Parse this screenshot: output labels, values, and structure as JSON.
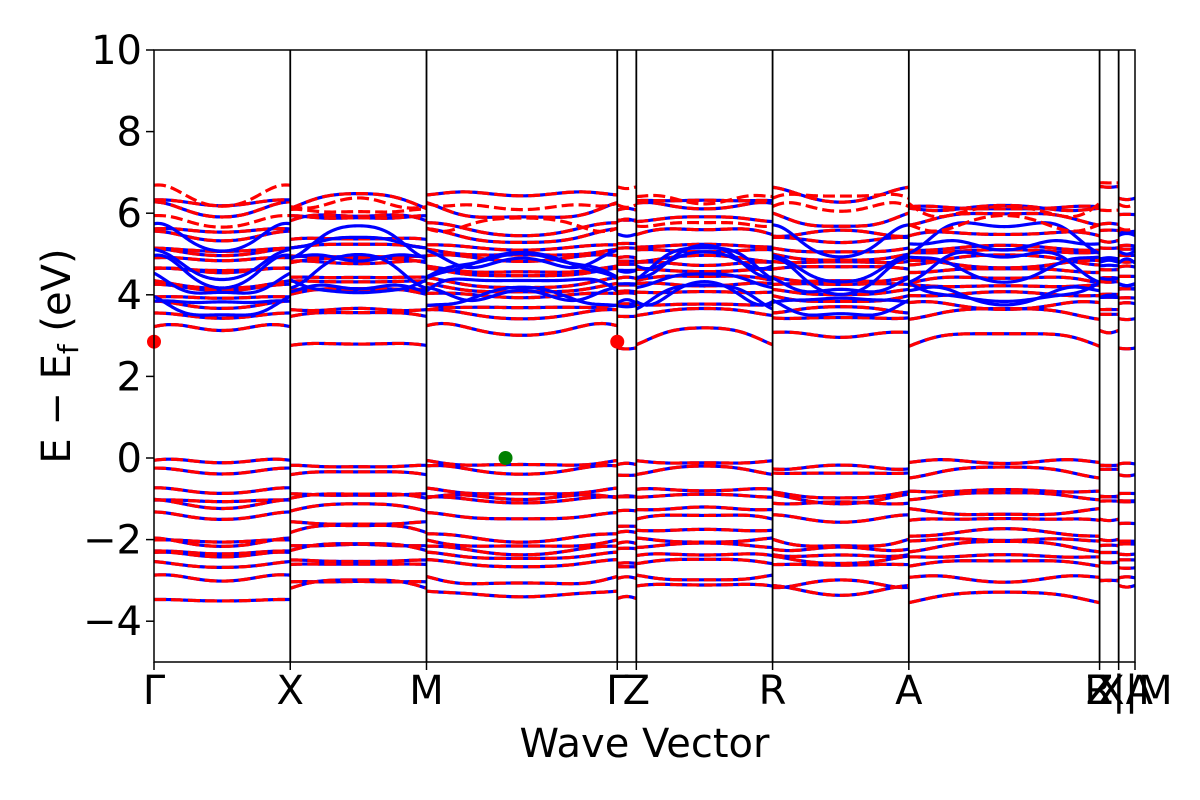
{
  "chart_data": {
    "type": "line",
    "title": "",
    "xlabel": "Wave Vector",
    "ylabel_parts": [
      "E − E",
      "f",
      " (eV)"
    ],
    "ylim": [
      -5,
      10
    ],
    "yticks": [
      -4,
      -2,
      0,
      2,
      4,
      6,
      8,
      10
    ],
    "ytick_labels": [
      "−4",
      "−2",
      "0",
      "2",
      "4",
      "6",
      "8",
      "10"
    ],
    "xlim": [
      0,
      7.2
    ],
    "kpoints": [
      {
        "label": "Γ",
        "x": 0.0
      },
      {
        "label": "X",
        "x": 1.0
      },
      {
        "label": "M",
        "x": 2.0
      },
      {
        "label": "Γ",
        "x": 3.4
      },
      {
        "label": "Z",
        "x": 3.54
      },
      {
        "label": "R",
        "x": 4.54
      },
      {
        "label": "A",
        "x": 5.54
      },
      {
        "label": "Z",
        "x": 6.94
      },
      {
        "label": "R|A",
        "x": 7.08
      },
      {
        "label": "X|M",
        "x": 7.2
      }
    ],
    "colors": {
      "spin_up": "#0000ff",
      "spin_down": "#ff0000",
      "vbm": "#008000",
      "cbm": "#ff0000"
    },
    "series": [],
    "markers": [
      {
        "x": 2.58,
        "y": 0.0,
        "color": "#008000"
      },
      {
        "x": 0.0,
        "y": 2.85,
        "color": "#ff0000"
      },
      {
        "x": 3.4,
        "y": 2.85,
        "color": "#ff0000"
      }
    ]
  }
}
